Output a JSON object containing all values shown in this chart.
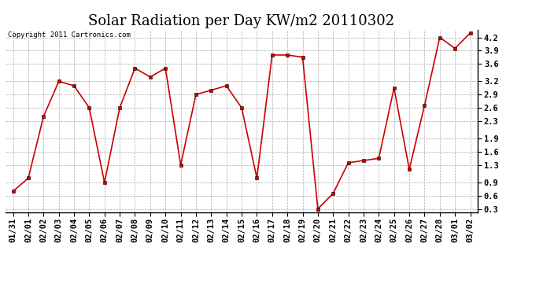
{
  "title": "Solar Radiation per Day KW/m2 20110302",
  "copyright": "Copyright 2011 Cartronics.com",
  "dates": [
    "01/31",
    "02/01",
    "02/02",
    "02/03",
    "02/04",
    "02/05",
    "02/06",
    "02/07",
    "02/08",
    "02/09",
    "02/10",
    "02/11",
    "02/12",
    "02/13",
    "02/14",
    "02/15",
    "02/16",
    "02/17",
    "02/18",
    "02/19",
    "02/20",
    "02/21",
    "02/22",
    "02/23",
    "02/24",
    "02/25",
    "02/26",
    "02/27",
    "02/28",
    "03/01",
    "03/02"
  ],
  "values": [
    0.7,
    1.0,
    2.4,
    3.2,
    3.1,
    2.6,
    0.9,
    2.6,
    3.5,
    3.3,
    3.5,
    1.3,
    2.9,
    3.0,
    3.1,
    2.6,
    1.0,
    3.8,
    3.8,
    3.75,
    0.3,
    0.65,
    1.35,
    1.4,
    1.45,
    3.05,
    1.2,
    2.65,
    4.2,
    3.95,
    4.3
  ],
  "line_color": "#cc0000",
  "marker": "s",
  "marker_size": 2.5,
  "bg_color": "#ffffff",
  "grid_color": "#aaaaaa",
  "ylim_min": 0.22,
  "ylim_max": 4.38,
  "yticks": [
    0.3,
    0.6,
    0.9,
    1.3,
    1.6,
    1.9,
    2.3,
    2.6,
    2.9,
    3.2,
    3.6,
    3.9,
    4.2
  ],
  "title_fontsize": 13,
  "copyright_fontsize": 6.5,
  "tick_fontsize": 7.5
}
